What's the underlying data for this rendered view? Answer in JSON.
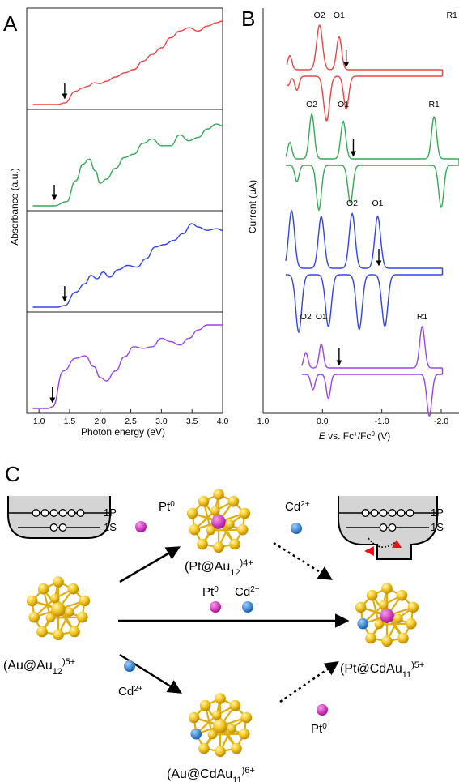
{
  "panel_labels": {
    "a": "A",
    "b": "B",
    "c": "C"
  },
  "colors": {
    "red": "#ee4444",
    "green": "#33aa55",
    "blue": "#3344ee",
    "purple": "#9944ee",
    "gold": "#f2c31c",
    "pt": "#dd22cc",
    "cd": "#2a7fd6"
  },
  "chart_data": [
    {
      "type": "line",
      "panel": "A",
      "xlabel": "Photon energy (eV)",
      "ylabel": "Absorbance (a.u.)",
      "xlim": [
        0.8,
        4.0
      ],
      "xticks": [
        "1.0",
        "1.5",
        "2.0",
        "2.5",
        "3.0",
        "3.5",
        "4.0"
      ],
      "arrow_energies": [
        1.42,
        1.25,
        1.42,
        1.22
      ],
      "series": [
        {
          "color": "#ee4444",
          "x": [
            0.9,
            1.3,
            1.42,
            1.6,
            1.72,
            1.8,
            1.9,
            2.0,
            2.1,
            2.25,
            2.4,
            2.55,
            2.7,
            2.85,
            3.0,
            3.15,
            3.3,
            3.45,
            3.6,
            3.75,
            3.9,
            4.0
          ],
          "y": [
            0.0,
            0.0,
            0.02,
            0.16,
            0.2,
            0.22,
            0.26,
            0.25,
            0.28,
            0.33,
            0.38,
            0.42,
            0.52,
            0.6,
            0.68,
            0.8,
            0.88,
            0.92,
            0.88,
            0.94,
            0.98,
            1.0
          ]
        },
        {
          "color": "#33aa55",
          "x": [
            0.9,
            1.25,
            1.45,
            1.6,
            1.72,
            1.82,
            1.92,
            2.0,
            2.1,
            2.25,
            2.4,
            2.55,
            2.7,
            2.85,
            3.0,
            3.15,
            3.3,
            3.45,
            3.6,
            3.75,
            3.9,
            4.0
          ],
          "y": [
            0.0,
            0.0,
            0.05,
            0.3,
            0.5,
            0.56,
            0.42,
            0.27,
            0.32,
            0.45,
            0.58,
            0.62,
            0.75,
            0.8,
            0.72,
            0.72,
            0.85,
            0.78,
            0.82,
            0.92,
            0.98,
            0.96
          ]
        },
        {
          "color": "#3344ee",
          "x": [
            0.9,
            1.3,
            1.42,
            1.6,
            1.75,
            1.85,
            1.95,
            2.05,
            2.15,
            2.3,
            2.45,
            2.6,
            2.75,
            2.9,
            3.05,
            3.2,
            3.35,
            3.5,
            3.6,
            3.75,
            3.9,
            4.0
          ],
          "y": [
            0.0,
            0.0,
            0.02,
            0.18,
            0.28,
            0.38,
            0.34,
            0.42,
            0.36,
            0.45,
            0.5,
            0.48,
            0.58,
            0.72,
            0.75,
            0.8,
            0.88,
            1.0,
            0.96,
            0.92,
            0.94,
            0.92
          ]
        },
        {
          "color": "#9944ee",
          "x": [
            0.9,
            1.15,
            1.22,
            1.4,
            1.6,
            1.75,
            1.9,
            2.0,
            2.1,
            2.25,
            2.4,
            2.55,
            2.7,
            2.85,
            3.0,
            3.15,
            3.3,
            3.45,
            3.6,
            3.75,
            3.9,
            4.0
          ],
          "y": [
            0.0,
            0.0,
            0.02,
            0.45,
            0.6,
            0.63,
            0.5,
            0.37,
            0.33,
            0.45,
            0.62,
            0.74,
            0.72,
            0.74,
            0.84,
            0.8,
            0.76,
            0.84,
            0.94,
            1.0,
            1.0,
            1.0
          ]
        }
      ]
    },
    {
      "type": "line",
      "panel": "B",
      "xlabel_prefix": "E",
      "xlabel_main": " vs. Fc",
      "xlabel_sup1": "+",
      "xlabel_mid": "/Fc",
      "xlabel_sup2": "0",
      "xlabel_suffix": " (V)",
      "ylabel": "Current (μA)",
      "xlim": [
        1.0,
        -2.3
      ],
      "xticks": [
        "1.0",
        "0.0",
        "-1.0",
        "-2.0"
      ],
      "peak_labels": [
        {
          "text": "O2",
          "E": 0.05
        },
        {
          "text": "O1",
          "E": -0.28
        },
        {
          "text": "R1",
          "E": -2.18
        },
        {
          "text": "O2",
          "E": 0.18
        },
        {
          "text": "O1",
          "E": -0.35
        },
        {
          "text": "R1",
          "E": -1.88
        },
        {
          "text": "O2",
          "E": -0.5
        },
        {
          "text": "O1",
          "E": -0.93
        },
        {
          "text": "O2",
          "E": 0.28
        },
        {
          "text": "O1",
          "E": 0.02
        },
        {
          "text": "R1",
          "E": -1.68
        }
      ],
      "arrow_potentials": [
        -0.4,
        -0.52,
        -0.95,
        -0.28
      ],
      "series": [
        {
          "color": "#ee4444",
          "peaks": [
            [
              0.7,
              0.2,
              0.05
            ],
            [
              0.55,
              0.3,
              0.05
            ],
            [
              0.05,
              0.95,
              0.07
            ],
            [
              -0.28,
              0.7,
              0.06
            ],
            [
              -2.18,
              0.4,
              0.07
            ]
          ]
        },
        {
          "color": "#33aa55",
          "peaks": [
            [
              0.55,
              0.35,
              0.05
            ],
            [
              0.18,
              0.95,
              0.06
            ],
            [
              -0.35,
              0.8,
              0.06
            ],
            [
              -1.88,
              0.9,
              0.06
            ]
          ]
        },
        {
          "color": "#3344ee",
          "peaks": [
            [
              0.52,
              1.0,
              0.07
            ],
            [
              0.02,
              0.9,
              0.07
            ],
            [
              -0.5,
              0.95,
              0.07
            ],
            [
              -0.93,
              0.9,
              0.07
            ]
          ]
        },
        {
          "color": "#9944ee",
          "peaks": [
            [
              0.28,
              0.35,
              0.05
            ],
            [
              0.02,
              0.55,
              0.05
            ],
            [
              -1.68,
              0.95,
              0.06
            ]
          ]
        }
      ]
    }
  ],
  "scheme": {
    "labels": {
      "au12_main": "(Au@Au",
      "au12_sub": "12",
      "au12_sup": ")5+",
      "pt12_main": "(Pt@Au",
      "pt12_sub": "12",
      "pt12_sup": ")4+",
      "cdau_main": "(Au@CdAu",
      "cdau_sub": "11",
      "cdau_sup": ")6+",
      "ptcd_main": "(Pt@CdAu",
      "ptcd_sub": "11",
      "ptcd_sup": ")5+"
    },
    "reagents": {
      "pt_top_main": "Pt",
      "pt_top_sup": "0",
      "cd_top_main": "Cd",
      "cd_top_sup": "2+",
      "pt_mid_main": "Pt",
      "pt_mid_sup": "0",
      "cd_mid_main": "Cd",
      "cd_mid_sup": "2+",
      "cd_bot_main": "Cd",
      "cd_bot_sup": "2+",
      "pt_bot_main": "Pt",
      "pt_bot_sup": "0"
    },
    "levels": {
      "p1": "1P",
      "s1": "1S",
      "p2": "1P",
      "s2": "1S"
    }
  }
}
